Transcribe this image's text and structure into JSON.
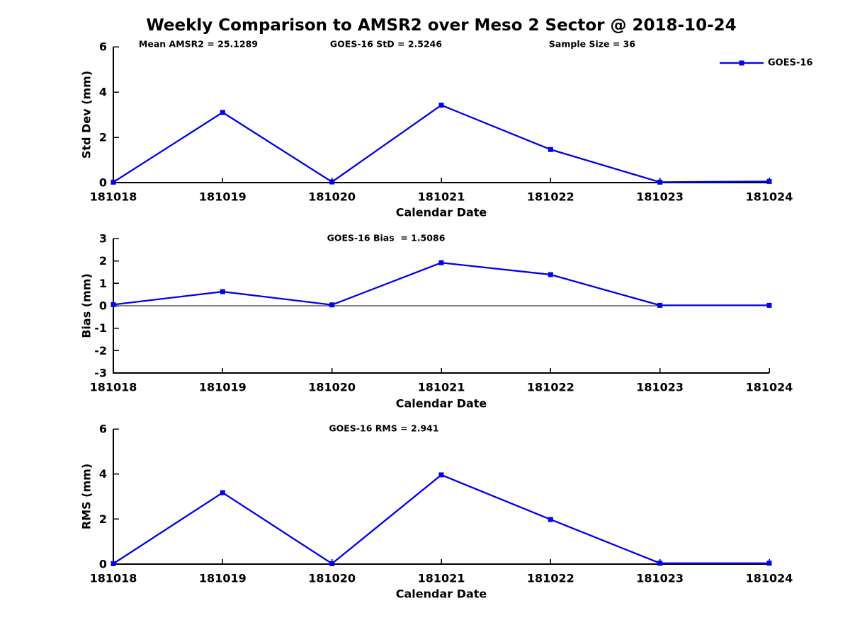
{
  "title": "Weekly Comparison to AMSR2 over Meso 2 Sector @ 2018-10-24",
  "colors": {
    "series": "#0000ee",
    "axis": "#000000",
    "text": "#000000",
    "background": "#ffffff"
  },
  "chart_data": [
    {
      "type": "line",
      "ylabel": "Std Dev (mm)",
      "xlabel": "Calendar Date",
      "ylim": [
        0,
        6
      ],
      "yticks": [
        0,
        2,
        4,
        6
      ],
      "grid": false,
      "categories": [
        "181018",
        "181019",
        "181020",
        "181021",
        "181022",
        "181023",
        "181024"
      ],
      "series": [
        {
          "name": "GOES-16",
          "color": "#0000ee",
          "marker": "square",
          "values": [
            0.02,
            3.1,
            0.03,
            3.42,
            1.46,
            0.02,
            0.05
          ]
        }
      ],
      "annotations": [
        "Mean AMSR2 = 25.1289",
        "GOES-16 StD = 2.5246",
        "Sample Size = 36"
      ],
      "legend": {
        "label": "GOES-16",
        "position": "top-right"
      }
    },
    {
      "type": "line",
      "ylabel": "Bias (mm)",
      "xlabel": "Calendar Date",
      "ylim": [
        -3,
        3
      ],
      "yticks": [
        -3,
        -2,
        -1,
        0,
        1,
        2,
        3
      ],
      "zero_line": true,
      "grid": false,
      "categories": [
        "181018",
        "181019",
        "181020",
        "181021",
        "181022",
        "181023",
        "181024"
      ],
      "series": [
        {
          "name": "GOES-16",
          "color": "#0000ee",
          "marker": "square",
          "values": [
            0.05,
            0.63,
            0.04,
            1.92,
            1.39,
            0.02,
            0.02
          ]
        }
      ],
      "annotations": [
        "GOES-16 Bias  = 1.5086"
      ]
    },
    {
      "type": "line",
      "ylabel": "RMS (mm)",
      "xlabel": "Calendar Date",
      "ylim": [
        0,
        6
      ],
      "yticks": [
        0,
        2,
        4,
        6
      ],
      "grid": false,
      "categories": [
        "181018",
        "181019",
        "181020",
        "181021",
        "181022",
        "181023",
        "181024"
      ],
      "series": [
        {
          "name": "GOES-16",
          "color": "#0000ee",
          "marker": "square",
          "values": [
            0.02,
            3.17,
            0.02,
            3.96,
            1.98,
            0.04,
            0.04
          ]
        }
      ],
      "annotations": [
        "GOES-16 RMS = 2.941"
      ]
    }
  ]
}
